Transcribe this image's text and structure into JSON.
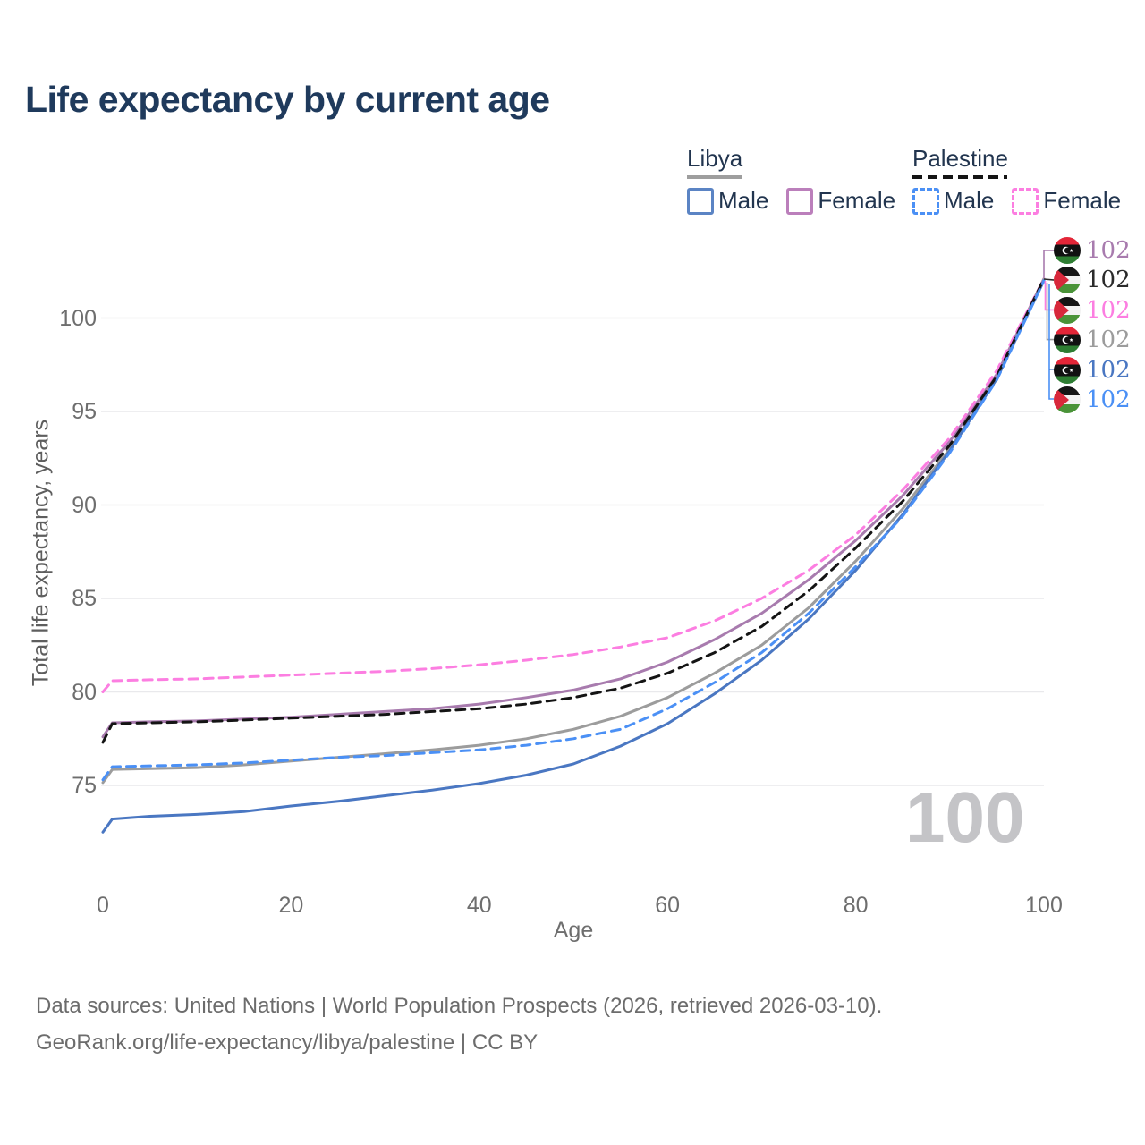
{
  "title": "Life expectancy by current age",
  "legend": {
    "groups": [
      {
        "label": "Libya",
        "underline_style": "solid",
        "underline_color": "#9E9E9E",
        "items": [
          {
            "label": "Male",
            "color": "#5B84C4",
            "dashed": false
          },
          {
            "label": "Female",
            "color": "#BB7FBB",
            "dashed": false
          }
        ]
      },
      {
        "label": "Palestine",
        "underline_style": "dashed",
        "underline_color": "#141414",
        "items": [
          {
            "label": "Male",
            "color": "#4B90F5",
            "dashed": true
          },
          {
            "label": "Female",
            "color": "#FC7EE1",
            "dashed": true
          }
        ]
      }
    ]
  },
  "watermark_age": "100",
  "footer": {
    "line1": "Data sources: United Nations | World Population Prospects (2026, retrieved 2026-03-10).",
    "line2": "GeoRank.org/life-expectancy/libya/palestine | CC BY"
  },
  "chart_data": {
    "type": "line",
    "title": "Life expectancy by current age",
    "xlabel": "Age",
    "ylabel": "Total life expectancy, years",
    "x_ticks": [
      0,
      20,
      40,
      60,
      80,
      100
    ],
    "y_ticks": [
      75,
      80,
      85,
      90,
      95,
      100
    ],
    "xlim": [
      0,
      100
    ],
    "ylim": [
      72,
      103
    ],
    "grid": "horizontal-only",
    "legend_position": "top-right",
    "x": [
      0,
      1,
      5,
      10,
      15,
      20,
      25,
      30,
      35,
      40,
      45,
      50,
      55,
      60,
      65,
      70,
      75,
      80,
      85,
      90,
      95,
      100
    ],
    "series": [
      {
        "id": "libya-female",
        "country": "Libya",
        "sex": "Female",
        "flag": "libya",
        "color": "#A87BAE",
        "label_color": "#A87BAE",
        "dashed": false,
        "end_label": "102",
        "values": [
          77.6,
          78.35,
          78.4,
          78.45,
          78.55,
          78.65,
          78.8,
          78.95,
          79.1,
          79.35,
          79.7,
          80.1,
          80.7,
          81.6,
          82.8,
          84.2,
          86.0,
          88.1,
          90.5,
          93.4,
          97.0,
          102.1
        ]
      },
      {
        "id": "palestine-total",
        "country": "Palestine",
        "sex": "Both sexes",
        "flag": "palestine",
        "color": "#141414",
        "label_color": "#2B2B2B",
        "dashed": true,
        "end_label": "102",
        "values": [
          77.3,
          78.3,
          78.35,
          78.4,
          78.5,
          78.6,
          78.7,
          78.8,
          78.95,
          79.1,
          79.35,
          79.7,
          80.2,
          81.0,
          82.1,
          83.5,
          85.4,
          87.7,
          90.2,
          93.2,
          96.9,
          102.1
        ]
      },
      {
        "id": "palestine-female",
        "country": "Palestine",
        "sex": "Female",
        "flag": "palestine",
        "color": "#FC7EE1",
        "label_color": "#FC7EE1",
        "dashed": true,
        "end_label": "102",
        "values": [
          80.0,
          80.6,
          80.65,
          80.7,
          80.8,
          80.9,
          81.0,
          81.1,
          81.25,
          81.45,
          81.7,
          82.0,
          82.4,
          82.9,
          83.8,
          85.0,
          86.5,
          88.4,
          90.8,
          93.6,
          97.2,
          102.1
        ]
      },
      {
        "id": "libya-total",
        "country": "Libya",
        "sex": "Both sexes",
        "flag": "libya",
        "color": "#9C9C9C",
        "label_color": "#9C9C9C",
        "dashed": false,
        "end_label": "102",
        "values": [
          75.15,
          75.85,
          75.9,
          75.95,
          76.1,
          76.3,
          76.5,
          76.7,
          76.9,
          77.15,
          77.5,
          78.0,
          78.7,
          79.7,
          81.0,
          82.5,
          84.5,
          87.0,
          89.8,
          93.0,
          96.8,
          102.05
        ]
      },
      {
        "id": "libya-male",
        "country": "Libya",
        "sex": "Male",
        "flag": "libya",
        "color": "#4A77C2",
        "label_color": "#4A77C2",
        "dashed": false,
        "end_label": "102",
        "values": [
          72.5,
          73.2,
          73.35,
          73.45,
          73.6,
          73.9,
          74.15,
          74.45,
          74.75,
          75.1,
          75.55,
          76.15,
          77.1,
          78.3,
          79.9,
          81.7,
          83.9,
          86.5,
          89.5,
          92.9,
          96.75,
          102.0
        ]
      },
      {
        "id": "palestine-male",
        "country": "Palestine",
        "sex": "Male",
        "flag": "palestine",
        "color": "#4B90F5",
        "label_color": "#4B90F5",
        "dashed": true,
        "end_label": "102",
        "values": [
          75.3,
          76.0,
          76.05,
          76.1,
          76.2,
          76.35,
          76.5,
          76.6,
          76.75,
          76.9,
          77.15,
          77.5,
          78.0,
          79.1,
          80.5,
          82.1,
          84.2,
          86.7,
          89.4,
          92.8,
          96.7,
          102.0
        ]
      }
    ]
  }
}
